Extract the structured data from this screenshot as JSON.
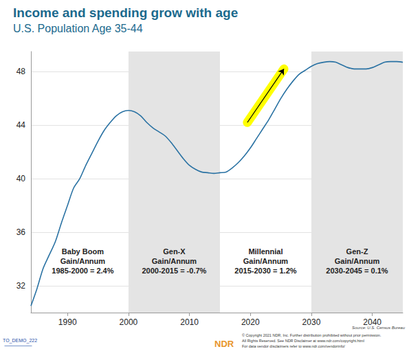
{
  "chart_data": {
    "type": "line",
    "title": "Income and spending grow with age",
    "subtitle": "U.S. Population Age 35-44",
    "color": "#2a72a3",
    "x": [
      1984,
      1985,
      1986,
      1987,
      1988,
      1989,
      1990,
      1991,
      1992,
      1993,
      1994,
      1995,
      1996,
      1997,
      1998,
      1999,
      2000,
      2001,
      2002,
      2003,
      2004,
      2005,
      2006,
      2007,
      2008,
      2009,
      2010,
      2011,
      2012,
      2013,
      2014,
      2015,
      2016,
      2017,
      2018,
      2019,
      2020,
      2021,
      2022,
      2023,
      2024,
      2025,
      2026,
      2027,
      2028,
      2029,
      2030,
      2031,
      2032,
      2033,
      2034,
      2035,
      2036,
      2037,
      2038,
      2039,
      2040,
      2041,
      2042,
      2043,
      2044,
      2045
    ],
    "values": [
      30.5,
      31.8,
      33.3,
      34.3,
      35.3,
      36.7,
      38.0,
      39.3,
      40.0,
      41.0,
      41.9,
      42.8,
      43.6,
      44.2,
      44.7,
      45.0,
      45.1,
      45.0,
      44.7,
      44.2,
      43.8,
      43.5,
      43.2,
      42.7,
      42.1,
      41.5,
      41.0,
      40.7,
      40.5,
      40.45,
      40.4,
      40.45,
      40.5,
      40.8,
      41.2,
      41.7,
      42.3,
      43.0,
      43.7,
      44.4,
      45.2,
      46.0,
      46.7,
      47.3,
      47.8,
      48.1,
      48.4,
      48.6,
      48.7,
      48.75,
      48.7,
      48.5,
      48.3,
      48.2,
      48.2,
      48.2,
      48.3,
      48.5,
      48.7,
      48.75,
      48.75,
      48.7
    ],
    "xlim": [
      1984,
      2045
    ],
    "xticks": [
      1990,
      2000,
      2010,
      2020,
      2030,
      2040
    ],
    "ylim": [
      30,
      49.5
    ],
    "yticks": [
      32,
      36,
      40,
      44,
      48
    ],
    "grid": true,
    "periods": [
      {
        "start": 1985,
        "end": 2000,
        "shaded": false,
        "lines": [
          "Baby Boom",
          "Gain/Annum",
          "1985-2000 = 2.4%"
        ]
      },
      {
        "start": 2000,
        "end": 2015,
        "shaded": true,
        "lines": [
          "Gen-X",
          "Gain/Annum",
          "2000-2015 = -0.7%"
        ]
      },
      {
        "start": 2015,
        "end": 2030,
        "shaded": false,
        "lines": [
          "Millennial",
          "Gain/Annum",
          "2015-2030 = 1.2%"
        ]
      },
      {
        "start": 2030,
        "end": 2045,
        "shaded": true,
        "lines": [
          "Gen-Z",
          "Gain/Annum",
          "2030-2045 = 0.1%"
        ]
      }
    ],
    "arrow": {
      "from": [
        2019.5,
        44.2
      ],
      "to": [
        2025.5,
        48.2
      ],
      "color": "#ffff00"
    },
    "source": "Source: U.S. Census Bureau",
    "code": "TO_DEMO_222",
    "logo": "NDR",
    "footnotes": [
      "© Copyright 2021 NDR, Inc. Further distribution prohibited without prior permission.",
      "All Rights Reserved. See NDR Disclaimer at www.ndr.com/copyright.html",
      "For data vendor disclaimers refer to www.ndr.com/vendorinfo/"
    ]
  }
}
